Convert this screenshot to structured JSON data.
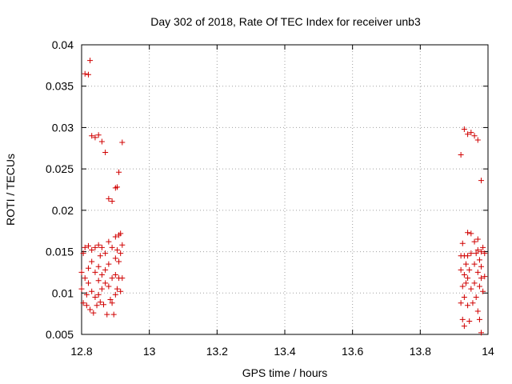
{
  "chart_data": {
    "type": "scatter",
    "title": "Day 302 of 2018, Rate Of TEC Index for receiver unb3",
    "xlabel": "GPS time / hours",
    "ylabel": "ROTI / TECUs",
    "xlim": [
      12.8,
      14.0
    ],
    "ylim": [
      0.005,
      0.04
    ],
    "xticks": [
      12.8,
      13.0,
      13.2,
      13.4,
      13.6,
      13.8,
      14.0
    ],
    "xtick_labels": [
      "12.8",
      "13",
      "13.2",
      "13.4",
      "13.6",
      "13.8",
      "14"
    ],
    "yticks": [
      0.005,
      0.01,
      0.015,
      0.02,
      0.025,
      0.03,
      0.035,
      0.04
    ],
    "ytick_labels": [
      "0.005",
      "0.01",
      "0.015",
      "0.02",
      "0.025",
      "0.03",
      "0.035",
      "0.04"
    ],
    "grid": true,
    "marker": "+",
    "color": "#d00000",
    "series": [
      {
        "name": "ROTI",
        "points": [
          [
            12.81,
            0.0365
          ],
          [
            12.82,
            0.0364
          ],
          [
            12.825,
            0.0381
          ],
          [
            12.83,
            0.029
          ],
          [
            12.84,
            0.0288
          ],
          [
            12.85,
            0.0291
          ],
          [
            12.86,
            0.0283
          ],
          [
            12.87,
            0.027
          ],
          [
            12.88,
            0.0214
          ],
          [
            12.89,
            0.0211
          ],
          [
            12.9,
            0.0227
          ],
          [
            12.905,
            0.0228
          ],
          [
            12.91,
            0.0246
          ],
          [
            12.92,
            0.0282
          ],
          [
            12.8,
            0.0125
          ],
          [
            12.8,
            0.0105
          ],
          [
            12.805,
            0.0148
          ],
          [
            12.805,
            0.0088
          ],
          [
            12.81,
            0.0155
          ],
          [
            12.81,
            0.0118
          ],
          [
            12.815,
            0.0098
          ],
          [
            12.815,
            0.0085
          ],
          [
            12.82,
            0.0157
          ],
          [
            12.82,
            0.013
          ],
          [
            12.82,
            0.0112
          ],
          [
            12.825,
            0.008
          ],
          [
            12.83,
            0.0152
          ],
          [
            12.83,
            0.0138
          ],
          [
            12.83,
            0.0102
          ],
          [
            12.835,
            0.0076
          ],
          [
            12.84,
            0.0155
          ],
          [
            12.84,
            0.0125
          ],
          [
            12.84,
            0.0095
          ],
          [
            12.845,
            0.0085
          ],
          [
            12.85,
            0.0158
          ],
          [
            12.85,
            0.0132
          ],
          [
            12.85,
            0.0115
          ],
          [
            12.85,
            0.0098
          ],
          [
            12.855,
            0.0145
          ],
          [
            12.855,
            0.0089
          ],
          [
            12.86,
            0.0155
          ],
          [
            12.86,
            0.0122
          ],
          [
            12.86,
            0.0105
          ],
          [
            12.865,
            0.0086
          ],
          [
            12.87,
            0.0148
          ],
          [
            12.87,
            0.0128
          ],
          [
            12.87,
            0.0112
          ],
          [
            12.875,
            0.0074
          ],
          [
            12.88,
            0.0162
          ],
          [
            12.88,
            0.0135
          ],
          [
            12.88,
            0.0108
          ],
          [
            12.885,
            0.0092
          ],
          [
            12.89,
            0.0155
          ],
          [
            12.89,
            0.0118
          ],
          [
            12.89,
            0.0088
          ],
          [
            12.895,
            0.0074
          ],
          [
            12.9,
            0.0168
          ],
          [
            12.9,
            0.0142
          ],
          [
            12.9,
            0.0122
          ],
          [
            12.9,
            0.0098
          ],
          [
            12.905,
            0.0152
          ],
          [
            12.905,
            0.0105
          ],
          [
            12.91,
            0.017
          ],
          [
            12.91,
            0.0138
          ],
          [
            12.91,
            0.0118
          ],
          [
            12.915,
            0.0172
          ],
          [
            12.915,
            0.0148
          ],
          [
            12.915,
            0.0102
          ],
          [
            12.92,
            0.0158
          ],
          [
            12.92,
            0.0118
          ],
          [
            13.92,
            0.0267
          ],
          [
            13.93,
            0.0298
          ],
          [
            13.94,
            0.0292
          ],
          [
            13.95,
            0.0294
          ],
          [
            13.96,
            0.029
          ],
          [
            13.97,
            0.0285
          ],
          [
            13.98,
            0.0236
          ],
          [
            13.92,
            0.0145
          ],
          [
            13.92,
            0.0128
          ],
          [
            13.92,
            0.0088
          ],
          [
            13.925,
            0.016
          ],
          [
            13.925,
            0.0108
          ],
          [
            13.925,
            0.0068
          ],
          [
            13.93,
            0.0145
          ],
          [
            13.93,
            0.0122
          ],
          [
            13.93,
            0.0095
          ],
          [
            13.93,
            0.006
          ],
          [
            13.935,
            0.0135
          ],
          [
            13.935,
            0.0112
          ],
          [
            13.94,
            0.0173
          ],
          [
            13.94,
            0.0145
          ],
          [
            13.94,
            0.0118
          ],
          [
            13.94,
            0.0085
          ],
          [
            13.945,
            0.0128
          ],
          [
            13.945,
            0.0066
          ],
          [
            13.95,
            0.0172
          ],
          [
            13.95,
            0.0148
          ],
          [
            13.95,
            0.0105
          ],
          [
            13.955,
            0.0088
          ],
          [
            13.96,
            0.0162
          ],
          [
            13.96,
            0.0135
          ],
          [
            13.96,
            0.0112
          ],
          [
            13.965,
            0.0148
          ],
          [
            13.965,
            0.0095
          ],
          [
            13.97,
            0.0165
          ],
          [
            13.97,
            0.0152
          ],
          [
            13.97,
            0.0125
          ],
          [
            13.97,
            0.0078
          ],
          [
            13.975,
            0.014
          ],
          [
            13.975,
            0.0108
          ],
          [
            13.975,
            0.0068
          ],
          [
            13.98,
            0.015
          ],
          [
            13.98,
            0.0132
          ],
          [
            13.98,
            0.0118
          ],
          [
            13.98,
            0.0052
          ],
          [
            13.985,
            0.0155
          ],
          [
            13.985,
            0.0102
          ],
          [
            13.99,
            0.0148
          ],
          [
            13.99,
            0.012
          ]
        ]
      }
    ]
  }
}
